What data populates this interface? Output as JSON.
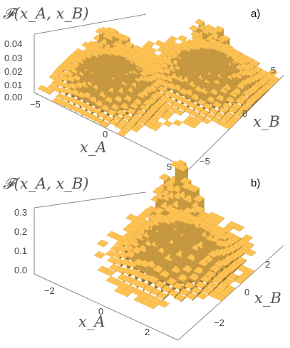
{
  "figure": {
    "panel_a": {
      "panel_label": "a)",
      "z_label": "𝓕(x_A, x_B)",
      "x_label": "x_A",
      "y_label": "x_B",
      "z_ticks": [
        "0.04",
        "0.03",
        "0.02",
        "0.01",
        "0.00"
      ],
      "x_ticks": [
        "−5",
        "0",
        "5"
      ],
      "y_ticks": [
        "5",
        "0",
        "−5"
      ]
    },
    "panel_b": {
      "panel_label": "b)",
      "z_label": "𝓕(x_A, x_B)",
      "x_label": "x_A",
      "y_label": "x_B",
      "z_ticks": [
        "0.3",
        "0.2",
        "0.1",
        "0.0"
      ],
      "x_ticks": [
        "−2",
        "0",
        "2"
      ],
      "y_ticks": [
        "2",
        "0",
        "−2"
      ]
    }
  },
  "chart_data": [
    {
      "type": "3d-histogram",
      "panel": "a)",
      "zlabel": "𝓕(x_A, x_B)",
      "xlabel": "x_A",
      "ylabel": "x_B",
      "xlim": [
        -6.5,
        6.5
      ],
      "ylim": [
        -6.5,
        6.5
      ],
      "zlim": [
        0,
        0.045
      ],
      "bar_color": "#f2b94e",
      "peaks": [
        {
          "x_A": -2.5,
          "x_B": 2.5,
          "height": 0.043
        },
        {
          "x_A": 2.5,
          "x_B": -2.5,
          "height": 0.043
        }
      ]
    },
    {
      "type": "3d-histogram",
      "panel": "b)",
      "zlabel": "𝓕(x_A, x_B)",
      "xlabel": "x_A",
      "ylabel": "x_B",
      "xlim": [
        -3.5,
        3.5
      ],
      "ylim": [
        -3.5,
        3.5
      ],
      "zlim": [
        0,
        0.33
      ],
      "bar_color": "#f2b94e",
      "peaks": [
        {
          "x_A": 0.5,
          "x_B": -0.5,
          "height": 0.33
        }
      ]
    }
  ]
}
